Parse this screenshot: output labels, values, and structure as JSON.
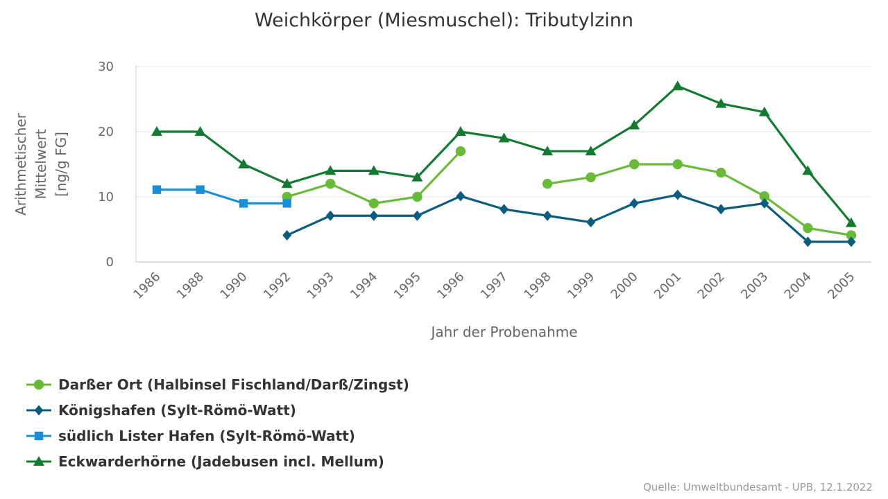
{
  "chart_data": {
    "type": "line",
    "title": "Weichkörper (Miesmuschel): Tributylzinn",
    "xlabel": "Jahr der Probenahme",
    "ylabel_lines": [
      "Arithmetischer",
      "Mittelwert",
      "[ng/g FG]"
    ],
    "ylim": [
      0,
      30
    ],
    "yticks": [
      0,
      10,
      20,
      30
    ],
    "grid": "horizontal",
    "legend_placement": "bottom-left",
    "categories": [
      "1986",
      "1988",
      "1990",
      "1992",
      "1993",
      "1994",
      "1995",
      "1996",
      "1997",
      "1998",
      "1999",
      "2000",
      "2001",
      "2002",
      "2003",
      "2004",
      "2005"
    ],
    "series": [
      {
        "name": "Darßer Ort (Halbinsel Fischland/Darß/Zingst)",
        "color": "#6aba3a",
        "marker": "circle",
        "values": [
          null,
          null,
          null,
          10,
          12,
          9,
          10,
          17,
          null,
          12,
          13,
          15,
          15,
          13.7,
          10.1,
          5.2,
          4.1
        ]
      },
      {
        "name": "Königshafen (Sylt-Römö-Watt)",
        "color": "#0b5c7e",
        "marker": "diamond",
        "values": [
          null,
          null,
          null,
          4.1,
          7.1,
          7.1,
          7.1,
          10.1,
          8.1,
          7.1,
          6.1,
          9,
          10.3,
          8.1,
          9,
          3.1,
          3.1
        ]
      },
      {
        "name": "südlich Lister Hafen (Sylt-Römö-Watt)",
        "color": "#1b8fd6",
        "marker": "square",
        "values": [
          11.1,
          11.1,
          9,
          9,
          null,
          null,
          null,
          null,
          null,
          null,
          null,
          null,
          null,
          null,
          null,
          null,
          null
        ]
      },
      {
        "name": "Eckwarderhörne (Jadebusen incl. Mellum)",
        "color": "#137a32",
        "marker": "triangle",
        "values": [
          20,
          20,
          15,
          12,
          14,
          14,
          13,
          20,
          19,
          17,
          17,
          21,
          27,
          24.3,
          23,
          14,
          6
        ]
      }
    ],
    "source": "Quelle: Umweltbundesamt - UPB, 12.1.2022"
  }
}
